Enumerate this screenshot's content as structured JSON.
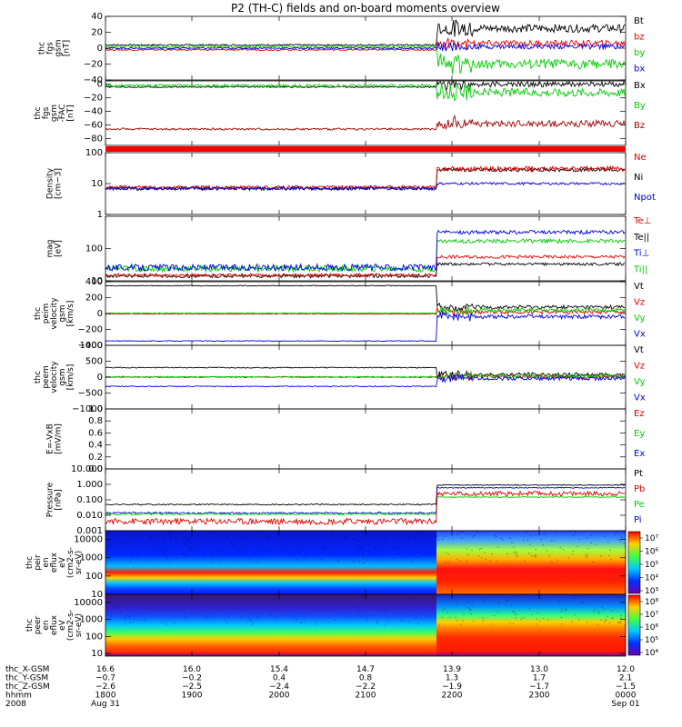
{
  "title": "P2 (TH-C) fields and on-board moments overview",
  "chart_data": {
    "type": "line",
    "title": "P2 (TH-C) fields and on-board moments overview",
    "x": {
      "ticks": [
        "1800",
        "1900",
        "2000",
        "2100",
        "2200",
        "2300",
        "0000"
      ],
      "range_hhmm": [
        "1800",
        "0000"
      ],
      "event_time": "2150"
    },
    "panels": [
      {
        "id": "fgs_gsm",
        "ylabel": [
          "thc",
          "fgs",
          "gsm",
          "[nT]"
        ],
        "ylim": [
          -40,
          40
        ],
        "yticks": [
          "40",
          "20",
          "0",
          "−20",
          "−40"
        ],
        "ytick_values": [
          40,
          20,
          0,
          -20,
          -40
        ],
        "legend": [
          {
            "name": "Bt",
            "color": "#000000"
          },
          {
            "name": "bz",
            "color": "#e00000"
          },
          {
            "name": "by",
            "color": "#00cc00"
          },
          {
            "name": "bx",
            "color": "#0000e0"
          }
        ],
        "series": [
          {
            "name": "Bt",
            "color": "#000000",
            "pre": 4,
            "post": 25,
            "noise_pre": 1,
            "noise_post": 5
          },
          {
            "name": "bz",
            "color": "#e00000",
            "pre": -2,
            "post": 6,
            "noise_pre": 1,
            "noise_post": 4
          },
          {
            "name": "by",
            "color": "#00cc00",
            "pre": 2,
            "post": -20,
            "noise_pre": 1.5,
            "noise_post": 6
          },
          {
            "name": "bx",
            "color": "#0000e0",
            "pre": 0,
            "post": 2,
            "noise_pre": 1,
            "noise_post": 3
          }
        ]
      },
      {
        "id": "fgs_fac",
        "ylabel": [
          "thc",
          "fgs",
          "gsm",
          "-FAC",
          "[nT]"
        ],
        "ylim": [
          -90,
          5
        ],
        "yticks": [
          "0",
          "−20",
          "−40",
          "−60",
          "−80"
        ],
        "ytick_values": [
          0,
          -20,
          -40,
          -60,
          -80
        ],
        "legend": [
          {
            "name": "Bx",
            "color": "#000000"
          },
          {
            "name": "By",
            "color": "#00cc00"
          },
          {
            "name": "Bz",
            "color": "#a00000"
          }
        ],
        "series": [
          {
            "name": "Bx",
            "color": "#000000",
            "pre": -4,
            "post": 0,
            "noise_pre": 1,
            "noise_post": 4
          },
          {
            "name": "By",
            "color": "#00cc00",
            "pre": -2,
            "post": -12,
            "noise_pre": 2,
            "noise_post": 6
          },
          {
            "name": "Bz",
            "color": "#a00000",
            "pre": -66,
            "post": -58,
            "noise_pre": 1.5,
            "noise_post": 5
          }
        ]
      },
      {
        "id": "density",
        "ylabel": [
          "Density",
          "[cm−3]"
        ],
        "scale": "log",
        "ylim": [
          1,
          100
        ],
        "yticks": [
          "100",
          "10",
          "1"
        ],
        "ytick_values": [
          100,
          10,
          1
        ],
        "legend": [
          {
            "name": "Ne",
            "color": "#e00000"
          },
          {
            "name": "Ni",
            "color": "#000000"
          },
          {
            "name": "Npot",
            "color": "#0000e0"
          }
        ],
        "series": [
          {
            "name": "Ni",
            "color": "#000000",
            "pre": 7,
            "post": 28,
            "noise_pre": 0.06,
            "noise_post": 0.06
          },
          {
            "name": "Ne",
            "color": "#e00000",
            "pre": 7.5,
            "post": 30,
            "noise_pre": 0.06,
            "noise_post": 0.08
          },
          {
            "name": "Npot",
            "color": "#0000e0",
            "pre": 7,
            "post": 10,
            "noise_pre": 0.05,
            "noise_post": 0.04
          }
        ]
      },
      {
        "id": "mom_temp",
        "ylabel": [
          "mag",
          "[eV]"
        ],
        "scale": "log",
        "ylim": [
          10,
          1000
        ],
        "yticks": [
          "100",
          "10"
        ],
        "ytick_values": [
          100,
          10
        ],
        "legend": [
          {
            "name": "Te⊥",
            "color": "#e00000"
          },
          {
            "name": "Te||",
            "color": "#000000"
          },
          {
            "name": "Ti⊥",
            "color": "#0000e0"
          },
          {
            "name": "Ti||",
            "color": "#00cc00"
          }
        ],
        "series": [
          {
            "name": "Te||",
            "color": "#000000",
            "pre": 14,
            "post": 33,
            "noise_pre": 0.05,
            "noise_post": 0.04
          },
          {
            "name": "Te⊥",
            "color": "#e00000",
            "pre": 15,
            "post": 55,
            "noise_pre": 0.05,
            "noise_post": 0.05
          },
          {
            "name": "Ti||",
            "color": "#00cc00",
            "pre": 24,
            "post": 170,
            "noise_pre": 0.1,
            "noise_post": 0.06
          },
          {
            "name": "Ti⊥",
            "color": "#0000e0",
            "pre": 26,
            "post": 320,
            "noise_pre": 0.1,
            "noise_post": 0.06
          }
        ]
      },
      {
        "id": "peim_velocity",
        "ylabel": [
          "thc",
          "peim",
          "velocity",
          "gsm",
          "[km/s]"
        ],
        "ylim": [
          -400,
          400
        ],
        "yticks": [
          "400",
          "200",
          "0",
          "−200",
          "−400"
        ],
        "ytick_values": [
          400,
          200,
          0,
          -200,
          -400
        ],
        "legend": [
          {
            "name": "Vt",
            "color": "#000000"
          },
          {
            "name": "Vz",
            "color": "#e00000"
          },
          {
            "name": "Vy",
            "color": "#00cc00"
          },
          {
            "name": "Vx",
            "color": "#0000e0"
          }
        ],
        "series": [
          {
            "name": "Vt",
            "color": "#000000",
            "pre": 350,
            "post": 80,
            "noise_pre": 5,
            "noise_post": 25
          },
          {
            "name": "Vz",
            "color": "#e00000",
            "pre": -5,
            "post": 20,
            "noise_pre": 5,
            "noise_post": 25
          },
          {
            "name": "Vy",
            "color": "#00cc00",
            "pre": 5,
            "post": 40,
            "noise_pre": 5,
            "noise_post": 25
          },
          {
            "name": "Vx",
            "color": "#0000e0",
            "pre": -345,
            "post": -40,
            "noise_pre": 5,
            "noise_post": 25
          }
        ]
      },
      {
        "id": "peem_velocity",
        "ylabel": [
          "thc",
          "peem",
          "velocity",
          "gsm",
          "[km/s]"
        ],
        "ylim": [
          -1000,
          1000
        ],
        "yticks": [
          "1000",
          "500",
          "0",
          "−500",
          "−1000"
        ],
        "ytick_values": [
          1000,
          500,
          0,
          -500,
          -1000
        ],
        "legend": [
          {
            "name": "Vt",
            "color": "#000000"
          },
          {
            "name": "Vz",
            "color": "#e00000"
          },
          {
            "name": "Vy",
            "color": "#00cc00"
          },
          {
            "name": "Vx",
            "color": "#0000e0"
          }
        ],
        "series": [
          {
            "name": "Vt",
            "color": "#000000",
            "pre": 300,
            "post": 80,
            "noise_pre": 15,
            "noise_post": 60
          },
          {
            "name": "Vz",
            "color": "#e00000",
            "pre": 0,
            "post": 20,
            "noise_pre": 15,
            "noise_post": 60
          },
          {
            "name": "Vy",
            "color": "#00cc00",
            "pre": 10,
            "post": 30,
            "noise_pre": 15,
            "noise_post": 60
          },
          {
            "name": "Vx",
            "color": "#0000e0",
            "pre": -290,
            "post": -40,
            "noise_pre": 15,
            "noise_post": 60
          }
        ]
      },
      {
        "id": "e_field",
        "ylabel": [
          "E=-VxB",
          "[mV/m]"
        ],
        "ylim": [
          0,
          1
        ],
        "yticks": [
          "1.0",
          "0.8",
          "0.6",
          "0.4",
          "0.2",
          "0.0"
        ],
        "ytick_values": [
          1,
          0.8,
          0.6,
          0.4,
          0.2,
          0
        ],
        "legend": [
          {
            "name": "Ez",
            "color": "#e00000"
          },
          {
            "name": "Ey",
            "color": "#00cc00"
          },
          {
            "name": "Ex",
            "color": "#0000e0"
          }
        ],
        "series": []
      },
      {
        "id": "pressure",
        "ylabel": [
          "Pressure",
          "[nPa]"
        ],
        "scale": "log",
        "ylim": [
          0.001,
          10
        ],
        "yticks": [
          "10.000",
          "1.000",
          "0.100",
          "0.010",
          "0.001"
        ],
        "ytick_values": [
          10,
          1,
          0.1,
          0.01,
          0.001
        ],
        "legend": [
          {
            "name": "Pt",
            "color": "#000000"
          },
          {
            "name": "Pb",
            "color": "#e00000"
          },
          {
            "name": "Pe",
            "color": "#00cc00"
          },
          {
            "name": "Pi",
            "color": "#0000e0"
          }
        ],
        "series": [
          {
            "name": "Pt",
            "color": "#000000",
            "pre": 0.05,
            "post": 0.9,
            "noise_pre": 0.04,
            "noise_post": 0.03
          },
          {
            "name": "Pi",
            "color": "#0000e0",
            "pre": 0.014,
            "post": 0.6,
            "noise_pre": 0.06,
            "noise_post": 0.03
          },
          {
            "name": "Pe",
            "color": "#00cc00",
            "pre": 0.012,
            "post": 0.15,
            "noise_pre": 0.06,
            "noise_post": 0.03
          },
          {
            "name": "Pb",
            "color": "#e00000",
            "pre": 0.004,
            "post": 0.25,
            "noise_pre": 0.2,
            "noise_post": 0.15
          }
        ]
      },
      {
        "id": "peir_spectrogram",
        "type": "heatmap",
        "ylabel": [
          "thc",
          "peir",
          "en",
          "eflux",
          "eV",
          "(cm2-s-",
          "sr-eV)"
        ],
        "scale": "log",
        "ylim": [
          10,
          30000
        ],
        "yticks": [
          "10000",
          "1000",
          "100",
          "10"
        ],
        "ytick_values": [
          10000,
          1000,
          100,
          10
        ],
        "colorbar_ticks": [
          "10⁷",
          "10⁶",
          "10⁵",
          "10⁴",
          "10³"
        ]
      },
      {
        "id": "peer_spectrogram",
        "type": "heatmap",
        "ylabel": [
          "thc",
          "peer",
          "en",
          "eflux",
          "eV",
          "(cm2-s-",
          "sr-eV)"
        ],
        "scale": "log",
        "ylim": [
          7,
          30000
        ],
        "yticks": [
          "10000",
          "1000",
          "100",
          "10"
        ],
        "ytick_values": [
          10000,
          1000,
          100,
          10
        ],
        "colorbar_ticks": [
          "10⁸",
          "10⁷",
          "10⁶",
          "10⁵",
          "10⁴"
        ]
      }
    ]
  },
  "footer": {
    "row_labels": [
      "thc_X-GSM",
      "thc_Y-GSM",
      "thc_Z-GSM",
      "hhmm",
      "2008"
    ],
    "columns": [
      {
        "x": "16.6",
        "y": "−0.7",
        "z": "−2.6",
        "hhmm": "1800",
        "date": "Aug 31"
      },
      {
        "x": "16.0",
        "y": "−0.2",
        "z": "−2.5",
        "hhmm": "1900",
        "date": ""
      },
      {
        "x": "15.4",
        "y": "0.4",
        "z": "−2.4",
        "hhmm": "2000",
        "date": ""
      },
      {
        "x": "14.7",
        "y": "0.8",
        "z": "−2.2",
        "hhmm": "2100",
        "date": ""
      },
      {
        "x": "13.9",
        "y": "1.3",
        "z": "−1.9",
        "hhmm": "2200",
        "date": ""
      },
      {
        "x": "13.0",
        "y": "1.7",
        "z": "−1.7",
        "hhmm": "2300",
        "date": ""
      },
      {
        "x": "12.0",
        "y": "2.1",
        "z": "−1.5",
        "hhmm": "0000",
        "date": "Sep 01"
      }
    ]
  }
}
